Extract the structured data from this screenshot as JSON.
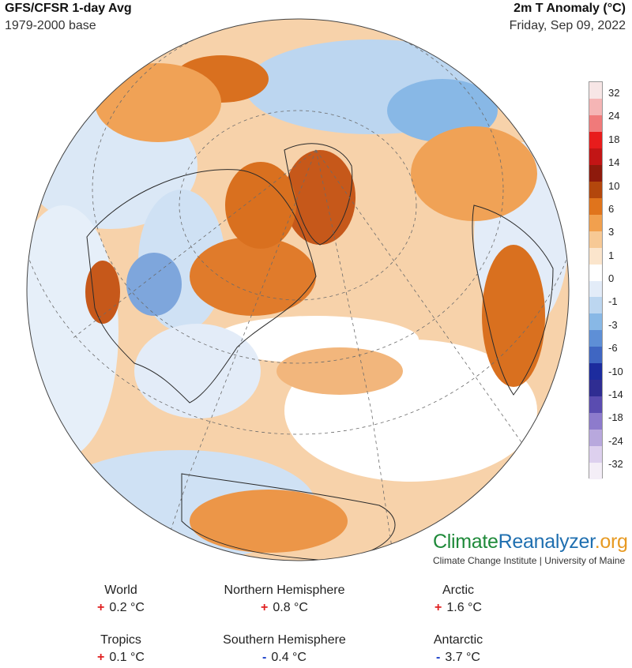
{
  "header": {
    "title": "GFS/CFSR 1-day Avg",
    "base": "1979-2000 base",
    "variable": "2m T Anomaly (°C)",
    "date": "Friday, Sep 09, 2022"
  },
  "colorbar": {
    "labels": [
      "32",
      "24",
      "18",
      "14",
      "10",
      "6",
      "3",
      "1",
      "0",
      "-1",
      "-3",
      "-6",
      "-10",
      "-14",
      "-18",
      "-24",
      "-32"
    ],
    "colors": [
      "#f7e6e6",
      "#f5b5b5",
      "#f07a7a",
      "#e81c1c",
      "#c21515",
      "#8e1a0c",
      "#b3470c",
      "#e0741c",
      "#f1a04e",
      "#f7c995",
      "#fbe5cc",
      "#ffffff",
      "#e3ecf8",
      "#bcd6f0",
      "#88b8e6",
      "#5e8fd6",
      "#3f66c2",
      "#1c2c9e",
      "#2f2d92",
      "#5a4cb0",
      "#8d7bcc",
      "#b8a8dd",
      "#ddd0ee",
      "#f4eef7"
    ]
  },
  "brand": {
    "climate": "Climate",
    "reanalyzer": "Reanalyzer",
    "org": ".org",
    "institute": "Climate Change Institute | University of Maine"
  },
  "stats": [
    {
      "label": "World",
      "sign": "+",
      "value": "0.2 °C"
    },
    {
      "label": "Northern Hemisphere",
      "sign": "+",
      "value": "0.8 °C"
    },
    {
      "label": "Arctic",
      "sign": "+",
      "value": "1.6 °C"
    },
    {
      "label": "Tropics",
      "sign": "+",
      "value": "0.1 °C"
    },
    {
      "label": "Southern Hemisphere",
      "sign": "-",
      "value": "0.4 °C"
    },
    {
      "label": "Antarctic",
      "sign": "-",
      "value": "3.7 °C"
    }
  ],
  "palette": {
    "globe_base": "#f6c99a",
    "warm_light": "#f9d9b4",
    "warm": "#f0a256",
    "warm_strong": "#d9701f",
    "hot": "#a9430f",
    "neutral": "#ffffff",
    "cool_light": "#dbe8f6",
    "cool": "#a8c9ec",
    "cold": "#5b86cf",
    "coast": "#2a2a2a",
    "grid": "#6b6b6b"
  }
}
